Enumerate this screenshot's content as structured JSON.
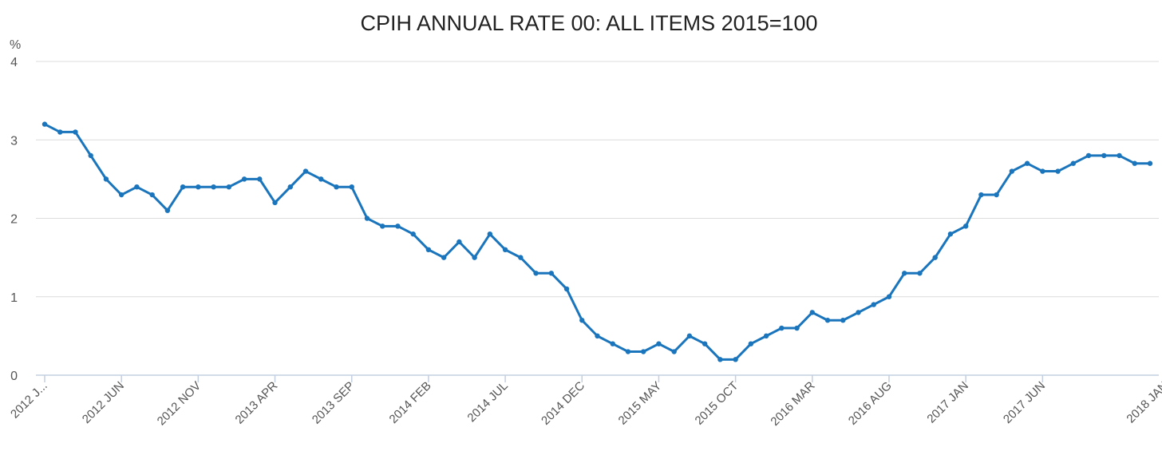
{
  "chart_data": {
    "type": "line",
    "title": "CPIH ANNUAL RATE 00: ALL ITEMS 2015=100",
    "ylabel": "%",
    "xlabel": "",
    "ylim": [
      0,
      4
    ],
    "yticks": [
      "0",
      "1",
      "2",
      "3",
      "4"
    ],
    "grid": true,
    "legend": "none",
    "x_tick_labels": [
      "2012 J...",
      "2012 JUN",
      "2012 NOV",
      "2013 APR",
      "2013 SEP",
      "2014 FEB",
      "2014 JUL",
      "2014 DEC",
      "2015 MAY",
      "2015 OCT",
      "2016 MAR",
      "2016 AUG",
      "2017 JAN",
      "2017 JUN",
      "2018 JAN"
    ],
    "x_tick_indices": [
      0,
      5,
      10,
      15,
      20,
      25,
      30,
      35,
      40,
      45,
      50,
      55,
      60,
      65,
      73
    ],
    "x": [
      "2012 JAN",
      "2012 FEB",
      "2012 MAR",
      "2012 APR",
      "2012 MAY",
      "2012 JUN",
      "2012 JUL",
      "2012 AUG",
      "2012 SEP",
      "2012 OCT",
      "2012 NOV",
      "2012 DEC",
      "2013 JAN",
      "2013 FEB",
      "2013 MAR",
      "2013 APR",
      "2013 MAY",
      "2013 JUN",
      "2013 JUL",
      "2013 AUG",
      "2013 SEP",
      "2013 OCT",
      "2013 NOV",
      "2013 DEC",
      "2014 JAN",
      "2014 FEB",
      "2014 MAR",
      "2014 APR",
      "2014 MAY",
      "2014 JUN",
      "2014 JUL",
      "2014 AUG",
      "2014 SEP",
      "2014 OCT",
      "2014 NOV",
      "2014 DEC",
      "2015 JAN",
      "2015 FEB",
      "2015 MAR",
      "2015 APR",
      "2015 MAY",
      "2015 JUN",
      "2015 JUL",
      "2015 AUG",
      "2015 SEP",
      "2015 OCT",
      "2015 NOV",
      "2015 DEC",
      "2016 JAN",
      "2016 FEB",
      "2016 MAR",
      "2016 APR",
      "2016 MAY",
      "2016 JUN",
      "2016 JUL",
      "2016 AUG",
      "2016 SEP",
      "2016 OCT",
      "2016 NOV",
      "2016 DEC",
      "2017 JAN",
      "2017 FEB",
      "2017 MAR",
      "2017 APR",
      "2017 MAY",
      "2017 JUN",
      "2017 JUL",
      "2017 AUG",
      "2017 SEP",
      "2017 OCT",
      "2017 NOV",
      "2017 DEC",
      "2018 JAN"
    ],
    "series": [
      {
        "color": "#1a75bc",
        "values": [
          3.2,
          3.1,
          3.1,
          2.8,
          2.5,
          2.3,
          2.4,
          2.3,
          2.1,
          2.4,
          2.4,
          2.4,
          2.4,
          2.5,
          2.5,
          2.2,
          2.4,
          2.6,
          2.5,
          2.4,
          2.4,
          2.0,
          1.9,
          1.9,
          1.8,
          1.6,
          1.5,
          1.7,
          1.5,
          1.8,
          1.6,
          1.5,
          1.3,
          1.3,
          1.1,
          0.7,
          0.5,
          0.4,
          0.3,
          0.3,
          0.4,
          0.3,
          0.5,
          0.4,
          0.2,
          0.2,
          0.4,
          0.5,
          0.6,
          0.6,
          0.8,
          0.7,
          0.7,
          0.8,
          0.9,
          1.0,
          1.3,
          1.3,
          1.5,
          1.8,
          1.9,
          2.3,
          2.3,
          2.6,
          2.7,
          2.6,
          2.6,
          2.7,
          2.8,
          2.8,
          2.8,
          2.7,
          2.7
        ]
      }
    ]
  }
}
